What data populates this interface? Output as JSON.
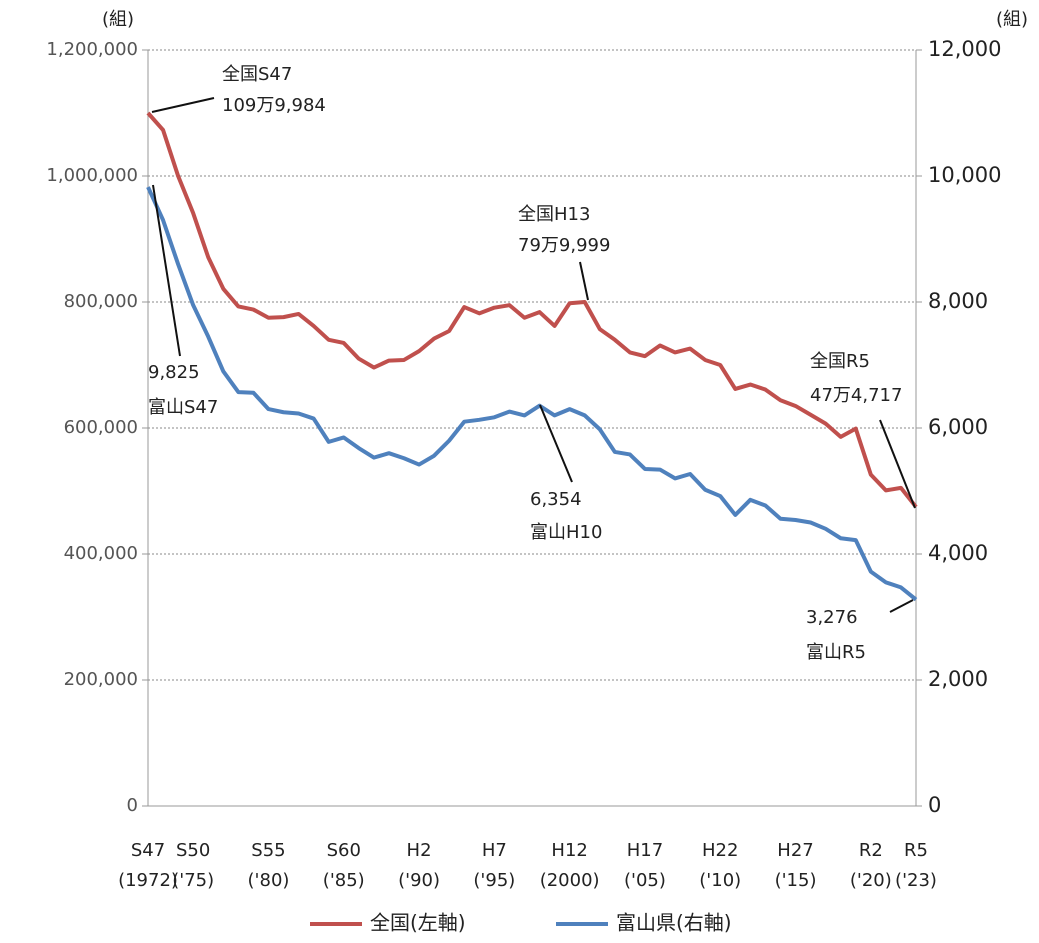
{
  "chart_data": {
    "type": "line",
    "y_unit": "(組)",
    "y2_unit": "(組)",
    "categories": [
      "S47\n(1972)",
      null,
      null,
      "S50\n('75)",
      null,
      null,
      null,
      null,
      "S55\n('80)",
      null,
      null,
      null,
      null,
      "S60\n('85)",
      null,
      null,
      null,
      null,
      "H2\n('90)",
      null,
      null,
      null,
      null,
      "H7\n('95)",
      null,
      null,
      null,
      null,
      "H12\n(2000)",
      null,
      null,
      null,
      null,
      "H17\n('05)",
      null,
      null,
      null,
      null,
      "H22\n('10)",
      null,
      null,
      null,
      null,
      "H27\n('15)",
      null,
      null,
      null,
      null,
      "R2\n('20)",
      null,
      null,
      "R5\n('23)"
    ],
    "series": [
      {
        "name": "全国(左軸)",
        "color": "#c0504d",
        "axis": "y",
        "values": [
          1099984,
          1073000,
          1000000,
          941000,
          871000,
          821000,
          793000,
          788000,
          775000,
          776000,
          781000,
          762000,
          740000,
          735000,
          710000,
          696000,
          707000,
          708000,
          722000,
          742000,
          754000,
          792000,
          782000,
          791000,
          795000,
          775000,
          784000,
          762000,
          798000,
          799999,
          757000,
          740000,
          720000,
          714000,
          731000,
          720000,
          726000,
          708000,
          700000,
          662000,
          669000,
          661000,
          644000,
          635000,
          621000,
          607000,
          586000,
          599000,
          526000,
          501000,
          505000,
          474717
        ]
      },
      {
        "name": "富山県(右軸)",
        "color": "#4f81bd",
        "axis": "y2",
        "values": [
          9825,
          9300,
          8600,
          7950,
          7450,
          6900,
          6570,
          6560,
          6300,
          6250,
          6230,
          6150,
          5780,
          5850,
          5680,
          5530,
          5600,
          5520,
          5420,
          5560,
          5800,
          6100,
          6130,
          6170,
          6260,
          6200,
          6354,
          6200,
          6300,
          6200,
          5980,
          5620,
          5580,
          5350,
          5340,
          5200,
          5270,
          5020,
          4920,
          4620,
          4860,
          4770,
          4560,
          4540,
          4500,
          4400,
          4250,
          4220,
          3720,
          3550,
          3470,
          3276
        ]
      }
    ],
    "ylim": [
      0,
      1200000
    ],
    "yticks": [
      0,
      {
        "value": 200000,
        "label": "200,000"
      },
      {
        "value": 400000,
        "label": "400,000"
      },
      {
        "value": 600000,
        "label": "600,000"
      },
      {
        "value": 800000,
        "label": "800,000"
      },
      {
        "value": 1000000,
        "label": "1,000,000"
      },
      {
        "value": 1200000,
        "label": "1,200,000"
      }
    ],
    "y2lim": [
      0,
      12000
    ],
    "y2ticks": [
      0,
      {
        "value": 2000,
        "label": "2,000"
      },
      {
        "value": 4000,
        "label": "4,000"
      },
      {
        "value": 6000,
        "label": "6,000"
      },
      {
        "value": 8000,
        "label": "8,000"
      },
      {
        "value": 10000,
        "label": "10,000"
      },
      {
        "value": 12000,
        "label": "12,000"
      }
    ],
    "grid": true,
    "legend": "bottom",
    "annotations": [
      {
        "lines": [
          "全国S47",
          "109万9,984"
        ]
      },
      {
        "lines": [
          "全国H13",
          "79万9,999"
        ]
      },
      {
        "lines": [
          "全国R5",
          "47万4,717"
        ]
      },
      {
        "lines": [
          "9,825",
          "富山S47"
        ]
      },
      {
        "lines": [
          "6,354",
          "富山H10"
        ]
      },
      {
        "lines": [
          "3,276",
          "富山R5"
        ]
      }
    ]
  }
}
